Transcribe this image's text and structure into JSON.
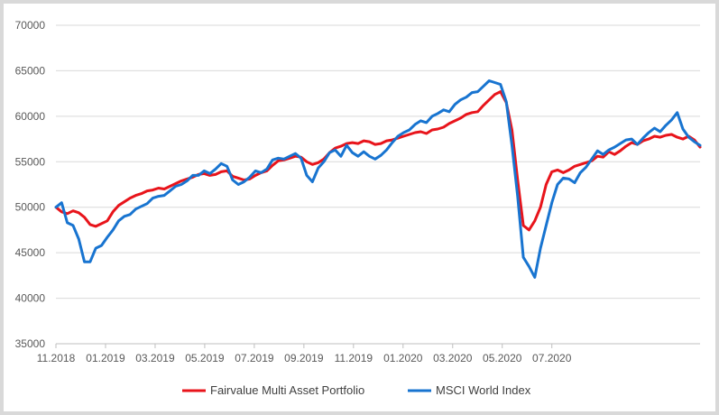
{
  "chart_data": {
    "type": "line",
    "title": "",
    "xlabel": "",
    "ylabel": "",
    "ylim": [
      35000,
      70000
    ],
    "y_ticks": [
      35000,
      40000,
      45000,
      50000,
      55000,
      60000,
      65000,
      70000
    ],
    "x_ticks": [
      "11.2018",
      "01.2019",
      "03.2019",
      "05.2019",
      "07.2019",
      "09.2019",
      "11.2019",
      "01.2020",
      "03.2020",
      "05.2020",
      "07.2020"
    ],
    "grid": "horizontal",
    "legend_position": "bottom",
    "x_unit": "weeks, starting 11.2018",
    "series": [
      {
        "name": "Fairvalue Multi Asset Portfolio",
        "color": "#e8141b",
        "values": [
          [
            0,
            50000
          ],
          [
            1,
            49500
          ],
          [
            2,
            49300
          ],
          [
            3,
            49600
          ],
          [
            4,
            49400
          ],
          [
            5,
            48900
          ],
          [
            6,
            48100
          ],
          [
            7,
            47900
          ],
          [
            8,
            48200
          ],
          [
            9,
            48500
          ],
          [
            10,
            49500
          ],
          [
            11,
            50200
          ],
          [
            12,
            50600
          ],
          [
            13,
            51000
          ],
          [
            14,
            51300
          ],
          [
            15,
            51500
          ],
          [
            16,
            51800
          ],
          [
            17,
            51900
          ],
          [
            18,
            52100
          ],
          [
            19,
            52000
          ],
          [
            20,
            52300
          ],
          [
            21,
            52600
          ],
          [
            22,
            52900
          ],
          [
            23,
            53100
          ],
          [
            24,
            53300
          ],
          [
            25,
            53600
          ],
          [
            26,
            53700
          ],
          [
            27,
            53500
          ],
          [
            28,
            53600
          ],
          [
            29,
            53900
          ],
          [
            30,
            54000
          ],
          [
            31,
            53400
          ],
          [
            32,
            53200
          ],
          [
            33,
            53000
          ],
          [
            34,
            53100
          ],
          [
            35,
            53500
          ],
          [
            36,
            53800
          ],
          [
            37,
            54000
          ],
          [
            38,
            54600
          ],
          [
            39,
            55100
          ],
          [
            40,
            55200
          ],
          [
            41,
            55400
          ],
          [
            42,
            55600
          ],
          [
            43,
            55500
          ],
          [
            44,
            55000
          ],
          [
            45,
            54700
          ],
          [
            46,
            54900
          ],
          [
            47,
            55300
          ],
          [
            48,
            56000
          ],
          [
            49,
            56500
          ],
          [
            50,
            56700
          ],
          [
            51,
            57000
          ],
          [
            52,
            57100
          ],
          [
            53,
            57000
          ],
          [
            54,
            57300
          ],
          [
            55,
            57200
          ],
          [
            56,
            56900
          ],
          [
            57,
            57000
          ],
          [
            58,
            57300
          ],
          [
            59,
            57400
          ],
          [
            60,
            57600
          ],
          [
            61,
            57800
          ],
          [
            62,
            58000
          ],
          [
            63,
            58200
          ],
          [
            64,
            58300
          ],
          [
            65,
            58100
          ],
          [
            66,
            58500
          ],
          [
            67,
            58600
          ],
          [
            68,
            58800
          ],
          [
            69,
            59200
          ],
          [
            70,
            59500
          ],
          [
            71,
            59800
          ],
          [
            72,
            60200
          ],
          [
            73,
            60400
          ],
          [
            74,
            60500
          ],
          [
            75,
            61200
          ],
          [
            76,
            61800
          ],
          [
            77,
            62400
          ],
          [
            78,
            62700
          ],
          [
            79,
            61500
          ],
          [
            80,
            58500
          ],
          [
            81,
            53000
          ],
          [
            82,
            48000
          ],
          [
            83,
            47500
          ],
          [
            84,
            48500
          ],
          [
            85,
            50000
          ],
          [
            86,
            52500
          ],
          [
            87,
            53900
          ],
          [
            88,
            54100
          ],
          [
            89,
            53800
          ],
          [
            90,
            54100
          ],
          [
            91,
            54500
          ],
          [
            92,
            54700
          ],
          [
            93,
            54900
          ],
          [
            94,
            55100
          ],
          [
            95,
            55600
          ],
          [
            96,
            55500
          ],
          [
            97,
            56100
          ],
          [
            98,
            55800
          ],
          [
            99,
            56200
          ],
          [
            100,
            56700
          ],
          [
            101,
            57100
          ],
          [
            102,
            56900
          ],
          [
            103,
            57300
          ],
          [
            104,
            57500
          ],
          [
            105,
            57800
          ],
          [
            106,
            57700
          ],
          [
            107,
            57900
          ],
          [
            108,
            58000
          ],
          [
            109,
            57700
          ],
          [
            110,
            57500
          ],
          [
            111,
            57800
          ],
          [
            112,
            57400
          ],
          [
            113,
            56600
          ]
        ]
      },
      {
        "name": "MSCI World Index",
        "color": "#1874d0",
        "values": [
          [
            0,
            50000
          ],
          [
            1,
            50500
          ],
          [
            2,
            48300
          ],
          [
            3,
            48000
          ],
          [
            4,
            46500
          ],
          [
            5,
            44000
          ],
          [
            6,
            44000
          ],
          [
            7,
            45500
          ],
          [
            8,
            45800
          ],
          [
            9,
            46700
          ],
          [
            10,
            47500
          ],
          [
            11,
            48500
          ],
          [
            12,
            49000
          ],
          [
            13,
            49200
          ],
          [
            14,
            49800
          ],
          [
            15,
            50100
          ],
          [
            16,
            50400
          ],
          [
            17,
            51000
          ],
          [
            18,
            51200
          ],
          [
            19,
            51300
          ],
          [
            20,
            51800
          ],
          [
            21,
            52300
          ],
          [
            22,
            52500
          ],
          [
            23,
            52900
          ],
          [
            24,
            53500
          ],
          [
            25,
            53500
          ],
          [
            26,
            54000
          ],
          [
            27,
            53700
          ],
          [
            28,
            54200
          ],
          [
            29,
            54800
          ],
          [
            30,
            54500
          ],
          [
            31,
            53000
          ],
          [
            32,
            52500
          ],
          [
            33,
            52800
          ],
          [
            34,
            53300
          ],
          [
            35,
            54000
          ],
          [
            36,
            53800
          ],
          [
            37,
            54200
          ],
          [
            38,
            55200
          ],
          [
            39,
            55400
          ],
          [
            40,
            55300
          ],
          [
            41,
            55600
          ],
          [
            42,
            55900
          ],
          [
            43,
            55400
          ],
          [
            44,
            53500
          ],
          [
            45,
            52800
          ],
          [
            46,
            54300
          ],
          [
            47,
            55000
          ],
          [
            48,
            56000
          ],
          [
            49,
            56300
          ],
          [
            50,
            55600
          ],
          [
            51,
            56800
          ],
          [
            52,
            56000
          ],
          [
            53,
            55600
          ],
          [
            54,
            56100
          ],
          [
            55,
            55600
          ],
          [
            56,
            55300
          ],
          [
            57,
            55700
          ],
          [
            58,
            56300
          ],
          [
            59,
            57100
          ],
          [
            60,
            57800
          ],
          [
            61,
            58200
          ],
          [
            62,
            58500
          ],
          [
            63,
            59100
          ],
          [
            64,
            59500
          ],
          [
            65,
            59300
          ],
          [
            66,
            60000
          ],
          [
            67,
            60300
          ],
          [
            68,
            60700
          ],
          [
            69,
            60500
          ],
          [
            70,
            61300
          ],
          [
            71,
            61800
          ],
          [
            72,
            62100
          ],
          [
            73,
            62600
          ],
          [
            74,
            62700
          ],
          [
            75,
            63300
          ],
          [
            76,
            63900
          ],
          [
            77,
            63700
          ],
          [
            78,
            63500
          ],
          [
            79,
            61600
          ],
          [
            80,
            56800
          ],
          [
            81,
            51200
          ],
          [
            82,
            44500
          ],
          [
            83,
            43500
          ],
          [
            84,
            42300
          ],
          [
            85,
            45500
          ],
          [
            86,
            48000
          ],
          [
            87,
            50500
          ],
          [
            88,
            52500
          ],
          [
            89,
            53200
          ],
          [
            90,
            53100
          ],
          [
            91,
            52700
          ],
          [
            92,
            53800
          ],
          [
            93,
            54400
          ],
          [
            94,
            55300
          ],
          [
            95,
            56200
          ],
          [
            96,
            55800
          ],
          [
            97,
            56300
          ],
          [
            98,
            56600
          ],
          [
            99,
            57000
          ],
          [
            100,
            57400
          ],
          [
            101,
            57500
          ],
          [
            102,
            56900
          ],
          [
            103,
            57600
          ],
          [
            104,
            58200
          ],
          [
            105,
            58700
          ],
          [
            106,
            58300
          ],
          [
            107,
            59000
          ],
          [
            108,
            59600
          ],
          [
            109,
            60400
          ],
          [
            110,
            58600
          ],
          [
            111,
            57700
          ],
          [
            112,
            57200
          ],
          [
            113,
            56800
          ]
        ]
      }
    ]
  }
}
